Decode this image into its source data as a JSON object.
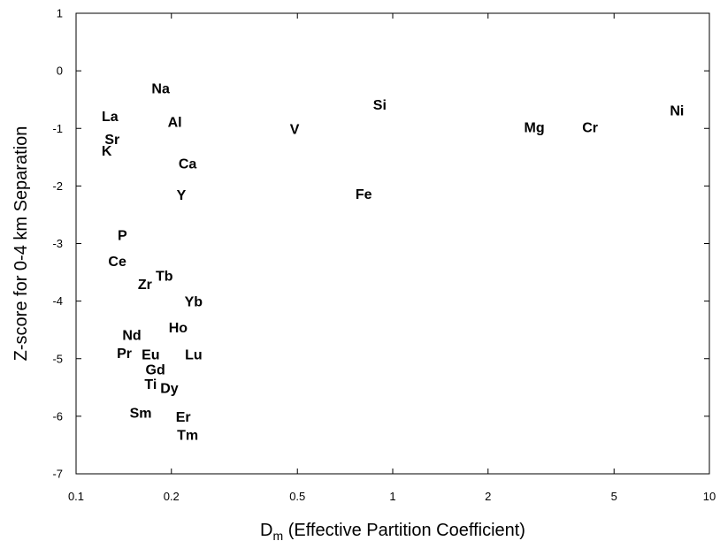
{
  "chart_data": {
    "type": "scatter",
    "title": "",
    "xlabel_main": "D",
    "xlabel_sub": "m",
    "xlabel_rest": " (Effective Partition Coefficient)",
    "ylabel": "Z-score for 0-4 km Separation",
    "x_scale": "log",
    "xlim": [
      0.1,
      10
    ],
    "ylim": [
      -7,
      1
    ],
    "x_ticks": [
      {
        "value": 0.1,
        "label": "0.1"
      },
      {
        "value": 0.2,
        "label": "0.2"
      },
      {
        "value": 0.5,
        "label": "0.5"
      },
      {
        "value": 1,
        "label": "1"
      },
      {
        "value": 2,
        "label": "2"
      },
      {
        "value": 5,
        "label": "5"
      },
      {
        "value": 10,
        "label": "10"
      }
    ],
    "y_ticks": [
      {
        "value": 1,
        "label": "1"
      },
      {
        "value": 0,
        "label": "0"
      },
      {
        "value": -1,
        "label": "-1"
      },
      {
        "value": -2,
        "label": "-2"
      },
      {
        "value": -3,
        "label": "-3"
      },
      {
        "value": -4,
        "label": "-4"
      },
      {
        "value": -5,
        "label": "-5"
      },
      {
        "value": -6,
        "label": "-6"
      },
      {
        "value": -7,
        "label": "-7"
      }
    ],
    "grid": false,
    "legend": "none",
    "marker": "element symbol text",
    "points": [
      {
        "label": "Na",
        "x": 0.185,
        "y": -0.3
      },
      {
        "label": "La",
        "x": 0.128,
        "y": -0.78
      },
      {
        "label": "Al",
        "x": 0.205,
        "y": -0.88
      },
      {
        "label": "Sr",
        "x": 0.13,
        "y": -1.18
      },
      {
        "label": "K",
        "x": 0.125,
        "y": -1.38
      },
      {
        "label": "Ca",
        "x": 0.225,
        "y": -1.6
      },
      {
        "label": "Y",
        "x": 0.215,
        "y": -2.15
      },
      {
        "label": "V",
        "x": 0.49,
        "y": -1.0
      },
      {
        "label": "Si",
        "x": 0.91,
        "y": -0.58
      },
      {
        "label": "Fe",
        "x": 0.81,
        "y": -2.13
      },
      {
        "label": "Mg",
        "x": 2.8,
        "y": -0.97
      },
      {
        "label": "Cr",
        "x": 4.2,
        "y": -0.97
      },
      {
        "label": "Ni",
        "x": 7.9,
        "y": -0.68
      },
      {
        "label": "P",
        "x": 0.14,
        "y": -2.85
      },
      {
        "label": "Ce",
        "x": 0.135,
        "y": -3.3
      },
      {
        "label": "Tb",
        "x": 0.19,
        "y": -3.55
      },
      {
        "label": "Zr",
        "x": 0.165,
        "y": -3.7
      },
      {
        "label": "Yb",
        "x": 0.235,
        "y": -4.0
      },
      {
        "label": "Ho",
        "x": 0.21,
        "y": -4.45
      },
      {
        "label": "Nd",
        "x": 0.15,
        "y": -4.58
      },
      {
        "label": "Pr",
        "x": 0.142,
        "y": -4.9
      },
      {
        "label": "Eu",
        "x": 0.172,
        "y": -4.92
      },
      {
        "label": "Lu",
        "x": 0.235,
        "y": -4.92
      },
      {
        "label": "Gd",
        "x": 0.178,
        "y": -5.18
      },
      {
        "label": "Ti",
        "x": 0.172,
        "y": -5.43
      },
      {
        "label": "Dy",
        "x": 0.197,
        "y": -5.5
      },
      {
        "label": "Sm",
        "x": 0.16,
        "y": -5.93
      },
      {
        "label": "Er",
        "x": 0.218,
        "y": -6.0
      },
      {
        "label": "Tm",
        "x": 0.225,
        "y": -6.32
      }
    ]
  }
}
